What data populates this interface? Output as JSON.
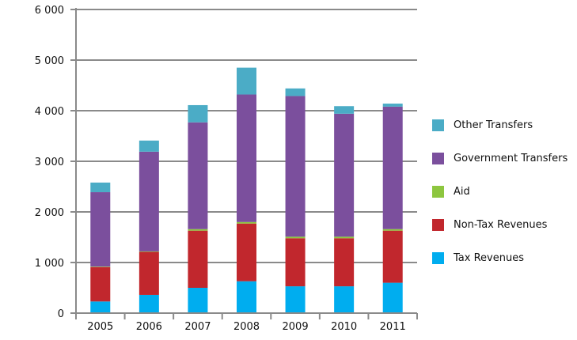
{
  "chart_data": {
    "type": "bar",
    "stacked": true,
    "categories": [
      "2005",
      "2006",
      "2007",
      "2008",
      "2009",
      "2010",
      "2011"
    ],
    "series": [
      {
        "name": "Tax Revenues",
        "color": "#00ADEF",
        "values": [
          230,
          360,
          500,
          630,
          530,
          530,
          600
        ]
      },
      {
        "name": "Non-Tax Revenues",
        "color": "#C1272D",
        "values": [
          680,
          850,
          1130,
          1140,
          950,
          950,
          1030
        ]
      },
      {
        "name": "Aid",
        "color": "#8DC63F",
        "values": [
          10,
          10,
          30,
          30,
          30,
          30,
          30
        ]
      },
      {
        "name": "Government Transfers",
        "color": "#7B4F9D",
        "values": [
          1470,
          1970,
          2110,
          2520,
          2780,
          2430,
          2420
        ]
      },
      {
        "name": "Other Transfers",
        "color": "#4BACC6",
        "values": [
          190,
          220,
          340,
          530,
          150,
          150,
          60
        ]
      }
    ],
    "yticks": [
      "0",
      "1 000",
      "2 000",
      "3 000",
      "4 000",
      "5 000",
      "6 000"
    ],
    "ylim": [
      0,
      6000
    ],
    "grid": "horizontal",
    "legend_placement": "right",
    "legend_order": [
      "Other Transfers",
      "Government Transfers",
      "Aid",
      "Non-Tax Revenues",
      "Tax Revenues"
    ],
    "title": "",
    "xlabel": "",
    "ylabel": ""
  }
}
